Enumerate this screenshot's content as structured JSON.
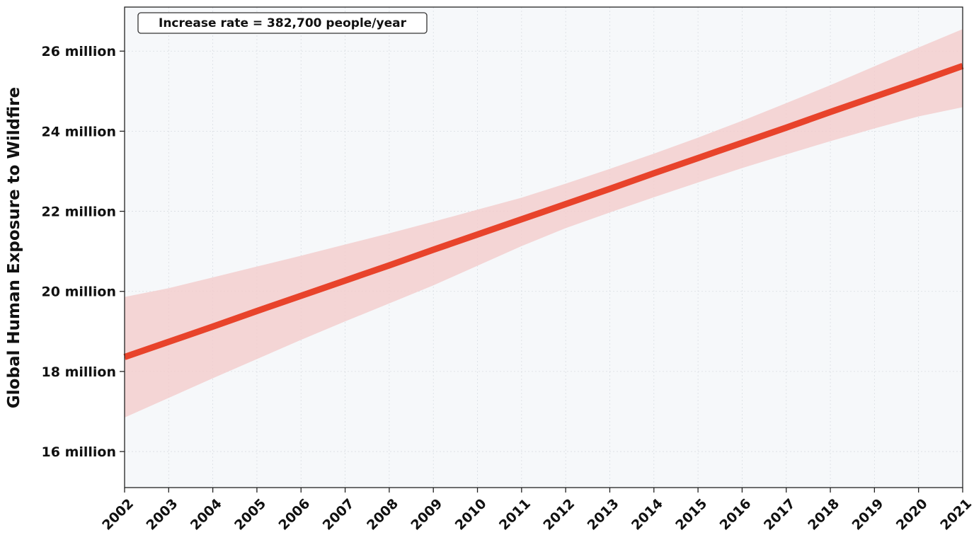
{
  "chart_data": {
    "type": "line",
    "x": [
      2002,
      2003,
      2004,
      2005,
      2006,
      2007,
      2008,
      2009,
      2010,
      2011,
      2012,
      2013,
      2014,
      2015,
      2016,
      2017,
      2018,
      2019,
      2020,
      2021
    ],
    "x_tick_labels": [
      "2002",
      "2003",
      "2004",
      "2005",
      "2006",
      "2007",
      "2008",
      "2009",
      "2010",
      "2011",
      "2012",
      "2013",
      "2014",
      "2015",
      "2016",
      "2017",
      "2018",
      "2019",
      "2020",
      "2021"
    ],
    "xlim": [
      2002,
      2021
    ],
    "ylim": [
      15.1,
      27.1
    ],
    "y_unit": "million",
    "y_ticks": [
      16,
      18,
      20,
      22,
      24,
      26
    ],
    "y_tick_labels": [
      "16 million",
      "18 million",
      "20 million",
      "22 million",
      "24 million",
      "26 million"
    ],
    "ylabel": "Global Human Exposure to Wildfire",
    "xlabel": "",
    "grid": true,
    "series": [
      {
        "kind": "trend-line",
        "color": "#e8432b",
        "values": [
          18.36,
          18.74,
          19.12,
          19.51,
          19.89,
          20.27,
          20.65,
          21.04,
          21.42,
          21.8,
          22.18,
          22.56,
          22.95,
          23.33,
          23.71,
          24.09,
          24.48,
          24.86,
          25.24,
          25.63
        ]
      },
      {
        "kind": "confidence-band",
        "color": "#f4cccc",
        "upper": [
          19.86,
          20.08,
          20.35,
          20.62,
          20.89,
          21.17,
          21.45,
          21.74,
          22.04,
          22.34,
          22.69,
          23.06,
          23.44,
          23.84,
          24.26,
          24.7,
          25.15,
          25.62,
          26.09,
          26.55
        ],
        "lower": [
          16.85,
          17.34,
          17.83,
          18.31,
          18.79,
          19.25,
          19.7,
          20.15,
          20.64,
          21.13,
          21.58,
          21.97,
          22.35,
          22.72,
          23.08,
          23.42,
          23.75,
          24.07,
          24.37,
          24.6
        ]
      }
    ],
    "annotation": "Increase rate = 382,700 people/year",
    "background_color": "#f6f8fa"
  }
}
